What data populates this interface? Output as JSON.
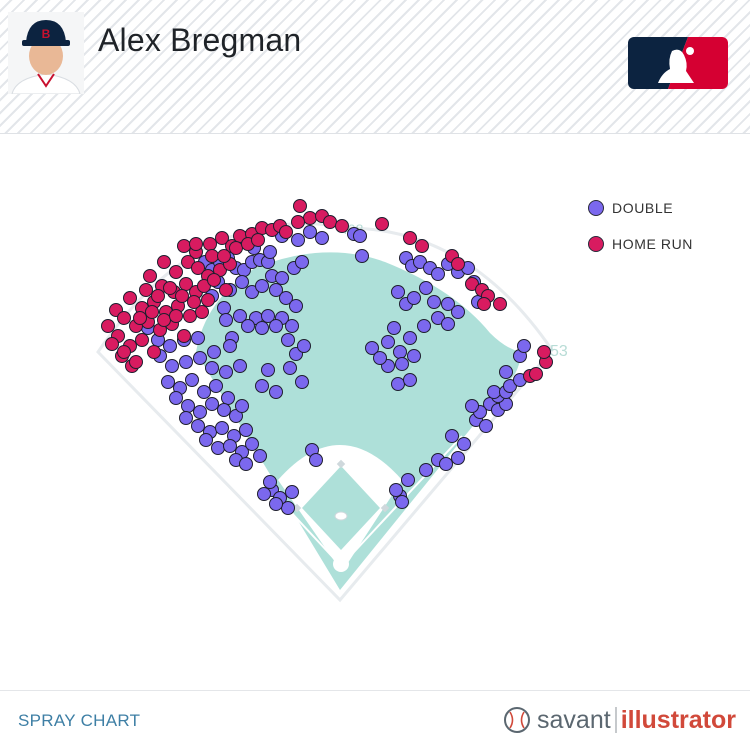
{
  "header": {
    "player_name": "Alex Bregman",
    "team_cap_letter": "B",
    "logo": "mlb-logo"
  },
  "chart_data": {
    "type": "scatter",
    "title": "SPRAY CHART",
    "series": [
      {
        "name": "DOUBLE",
        "color": "#7b68ee",
        "points": [
          [
            205,
            262
          ],
          [
            212,
            270
          ],
          [
            220,
            262
          ],
          [
            228,
            258
          ],
          [
            236,
            268
          ],
          [
            244,
            270
          ],
          [
            252,
            262
          ],
          [
            260,
            260
          ],
          [
            268,
            262
          ],
          [
            272,
            276
          ],
          [
            282,
            278
          ],
          [
            294,
            268
          ],
          [
            302,
            262
          ],
          [
            218,
            282
          ],
          [
            230,
            290
          ],
          [
            242,
            282
          ],
          [
            252,
            292
          ],
          [
            262,
            286
          ],
          [
            276,
            290
          ],
          [
            286,
            298
          ],
          [
            296,
            306
          ],
          [
            212,
            296
          ],
          [
            224,
            308
          ],
          [
            240,
            316
          ],
          [
            256,
            318
          ],
          [
            268,
            316
          ],
          [
            282,
            318
          ],
          [
            292,
            326
          ],
          [
            226,
            320
          ],
          [
            232,
            338
          ],
          [
            248,
            326
          ],
          [
            262,
            328
          ],
          [
            276,
            326
          ],
          [
            148,
            328
          ],
          [
            158,
            340
          ],
          [
            170,
            346
          ],
          [
            184,
            340
          ],
          [
            198,
            338
          ],
          [
            214,
            352
          ],
          [
            230,
            346
          ],
          [
            160,
            356
          ],
          [
            172,
            366
          ],
          [
            186,
            362
          ],
          [
            200,
            358
          ],
          [
            212,
            368
          ],
          [
            226,
            372
          ],
          [
            240,
            366
          ],
          [
            168,
            382
          ],
          [
            180,
            388
          ],
          [
            192,
            380
          ],
          [
            204,
            392
          ],
          [
            216,
            386
          ],
          [
            228,
            398
          ],
          [
            176,
            398
          ],
          [
            188,
            406
          ],
          [
            200,
            412
          ],
          [
            212,
            404
          ],
          [
            224,
            410
          ],
          [
            236,
            416
          ],
          [
            242,
            406
          ],
          [
            186,
            418
          ],
          [
            198,
            426
          ],
          [
            210,
            432
          ],
          [
            222,
            428
          ],
          [
            234,
            436
          ],
          [
            246,
            430
          ],
          [
            206,
            440
          ],
          [
            218,
            448
          ],
          [
            230,
            446
          ],
          [
            242,
            452
          ],
          [
            252,
            444
          ],
          [
            260,
            456
          ],
          [
            236,
            460
          ],
          [
            246,
            464
          ],
          [
            288,
            340
          ],
          [
            296,
            354
          ],
          [
            304,
            346
          ],
          [
            290,
            368
          ],
          [
            302,
            382
          ],
          [
            268,
            370
          ],
          [
            276,
            392
          ],
          [
            262,
            386
          ],
          [
            244,
            238
          ],
          [
            254,
            248
          ],
          [
            270,
            252
          ],
          [
            282,
            236
          ],
          [
            298,
            240
          ],
          [
            310,
            232
          ],
          [
            322,
            238
          ],
          [
            272,
            490
          ],
          [
            280,
            498
          ],
          [
            292,
            492
          ],
          [
            288,
            508
          ],
          [
            276,
            504
          ],
          [
            264,
            494
          ],
          [
            270,
            482
          ],
          [
            312,
            450
          ],
          [
            316,
            460
          ],
          [
            354,
            234
          ],
          [
            360,
            236
          ],
          [
            362,
            256
          ],
          [
            406,
            258
          ],
          [
            412,
            266
          ],
          [
            420,
            262
          ],
          [
            430,
            268
          ],
          [
            438,
            274
          ],
          [
            448,
            264
          ],
          [
            458,
            272
          ],
          [
            468,
            268
          ],
          [
            474,
            282
          ],
          [
            478,
            302
          ],
          [
            398,
            292
          ],
          [
            406,
            304
          ],
          [
            414,
            298
          ],
          [
            426,
            288
          ],
          [
            434,
            302
          ],
          [
            448,
            304
          ],
          [
            458,
            312
          ],
          [
            394,
            328
          ],
          [
            410,
            338
          ],
          [
            424,
            326
          ],
          [
            438,
            318
          ],
          [
            448,
            324
          ],
          [
            372,
            348
          ],
          [
            388,
            342
          ],
          [
            400,
            352
          ],
          [
            414,
            356
          ],
          [
            402,
            364
          ],
          [
            388,
            366
          ],
          [
            380,
            358
          ],
          [
            398,
            384
          ],
          [
            410,
            380
          ],
          [
            452,
            436
          ],
          [
            464,
            444
          ],
          [
            476,
            420
          ],
          [
            486,
            426
          ],
          [
            490,
            404
          ],
          [
            498,
            410
          ],
          [
            506,
            404
          ],
          [
            498,
            396
          ],
          [
            494,
            392
          ],
          [
            506,
            392
          ],
          [
            480,
            412
          ],
          [
            472,
            406
          ],
          [
            438,
            460
          ],
          [
            446,
            464
          ],
          [
            458,
            458
          ],
          [
            426,
            470
          ],
          [
            408,
            480
          ],
          [
            400,
            496
          ],
          [
            396,
            490
          ],
          [
            402,
            502
          ],
          [
            520,
            356
          ],
          [
            524,
            346
          ],
          [
            510,
            386
          ],
          [
            506,
            372
          ],
          [
            520,
            380
          ]
        ]
      },
      {
        "name": "HOME RUN",
        "color": "#d81b60",
        "points": [
          [
            184,
            246
          ],
          [
            196,
            252
          ],
          [
            210,
            244
          ],
          [
            222,
            238
          ],
          [
            232,
            246
          ],
          [
            240,
            236
          ],
          [
            252,
            234
          ],
          [
            262,
            228
          ],
          [
            272,
            230
          ],
          [
            280,
            226
          ],
          [
            300,
            206
          ],
          [
            310,
            218
          ],
          [
            322,
            216
          ],
          [
            330,
            222
          ],
          [
            342,
            226
          ],
          [
            298,
            222
          ],
          [
            286,
            232
          ],
          [
            164,
            262
          ],
          [
            176,
            272
          ],
          [
            188,
            262
          ],
          [
            198,
            268
          ],
          [
            208,
            276
          ],
          [
            220,
            270
          ],
          [
            230,
            264
          ],
          [
            150,
            276
          ],
          [
            162,
            286
          ],
          [
            174,
            292
          ],
          [
            186,
            284
          ],
          [
            196,
            292
          ],
          [
            208,
            300
          ],
          [
            130,
            298
          ],
          [
            142,
            308
          ],
          [
            154,
            302
          ],
          [
            166,
            312
          ],
          [
            178,
            306
          ],
          [
            190,
            316
          ],
          [
            202,
            312
          ],
          [
            116,
            310
          ],
          [
            124,
            318
          ],
          [
            136,
            326
          ],
          [
            148,
            322
          ],
          [
            160,
            330
          ],
          [
            172,
            324
          ],
          [
            184,
            336
          ],
          [
            108,
            326
          ],
          [
            118,
            336
          ],
          [
            130,
            346
          ],
          [
            142,
            340
          ],
          [
            154,
            352
          ],
          [
            122,
            356
          ],
          [
            132,
            366
          ],
          [
            112,
            344
          ],
          [
            124,
            352
          ],
          [
            136,
            362
          ],
          [
            146,
            290
          ],
          [
            158,
            296
          ],
          [
            170,
            288
          ],
          [
            182,
            296
          ],
          [
            194,
            302
          ],
          [
            140,
            318
          ],
          [
            152,
            312
          ],
          [
            164,
            320
          ],
          [
            176,
            316
          ],
          [
            196,
            244
          ],
          [
            212,
            256
          ],
          [
            224,
            256
          ],
          [
            236,
            248
          ],
          [
            248,
            244
          ],
          [
            258,
            240
          ],
          [
            204,
            286
          ],
          [
            214,
            280
          ],
          [
            226,
            290
          ],
          [
            382,
            224
          ],
          [
            410,
            238
          ],
          [
            422,
            246
          ],
          [
            452,
            256
          ],
          [
            458,
            264
          ],
          [
            472,
            284
          ],
          [
            482,
            290
          ],
          [
            488,
            296
          ],
          [
            500,
            304
          ],
          [
            484,
            304
          ],
          [
            530,
            376
          ],
          [
            536,
            374
          ],
          [
            546,
            362
          ],
          [
            544,
            352
          ]
        ]
      }
    ],
    "xlim": [
      0,
      750
    ],
    "ylim": [
      0,
      555
    ],
    "legend_position": "top-right",
    "annotations": [
      "408",
      "53"
    ]
  },
  "legend": {
    "items": [
      {
        "label": "DOUBLE",
        "color": "#7b68ee"
      },
      {
        "label": "HOME RUN",
        "color": "#d81b60"
      }
    ]
  },
  "footer": {
    "chart_label": "SPRAY CHART",
    "brand_savant": "savant",
    "brand_illustrator": "illustrator"
  },
  "colors": {
    "field_grass": "#aee0d9",
    "infield_dirt": "#ffffff",
    "outline": "#e7ebee"
  }
}
